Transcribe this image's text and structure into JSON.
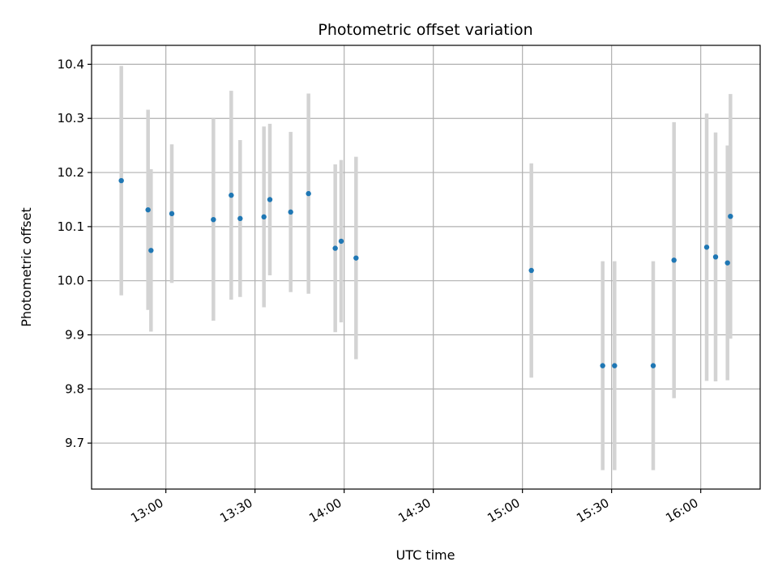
{
  "chart_data": {
    "type": "scatter",
    "title": "Photometric offset variation",
    "xlabel": "UTC time",
    "ylabel": "Photometric offset",
    "xlim": [
      "12:35",
      "16:20"
    ],
    "ylim": [
      9.615,
      10.435
    ],
    "x_ticks": [
      "13:00",
      "13:30",
      "14:00",
      "14:30",
      "15:00",
      "15:30",
      "16:00"
    ],
    "y_ticks": [
      9.7,
      9.8,
      9.9,
      10.0,
      10.1,
      10.2,
      10.3,
      10.4
    ],
    "grid": true,
    "point_color": "#1f77b4",
    "errorbar_color": "#d3d3d3",
    "points": [
      {
        "x": "12:45",
        "y": 10.185,
        "err": 0.212
      },
      {
        "x": "12:54",
        "y": 10.131,
        "err": 0.185
      },
      {
        "x": "12:55",
        "y": 10.056,
        "err": 0.15
      },
      {
        "x": "13:02",
        "y": 10.124,
        "err": 0.128
      },
      {
        "x": "13:16",
        "y": 10.113,
        "err": 0.187
      },
      {
        "x": "13:22",
        "y": 10.158,
        "err": 0.193
      },
      {
        "x": "13:25",
        "y": 10.115,
        "err": 0.145
      },
      {
        "x": "13:33",
        "y": 10.118,
        "err": 0.167
      },
      {
        "x": "13:35",
        "y": 10.15,
        "err": 0.14
      },
      {
        "x": "13:42",
        "y": 10.127,
        "err": 0.148
      },
      {
        "x": "13:48",
        "y": 10.161,
        "err": 0.185
      },
      {
        "x": "13:57",
        "y": 10.06,
        "err": 0.155
      },
      {
        "x": "13:59",
        "y": 10.073,
        "err": 0.15
      },
      {
        "x": "14:04",
        "y": 10.042,
        "err": 0.187
      },
      {
        "x": "15:03",
        "y": 10.019,
        "err": 0.198
      },
      {
        "x": "15:27",
        "y": 9.843,
        "err": 0.193
      },
      {
        "x": "15:31",
        "y": 9.843,
        "err": 0.193
      },
      {
        "x": "15:44",
        "y": 9.843,
        "err": 0.193
      },
      {
        "x": "15:51",
        "y": 10.038,
        "err": 0.255
      },
      {
        "x": "16:02",
        "y": 10.062,
        "err": 0.247
      },
      {
        "x": "16:05",
        "y": 10.044,
        "err": 0.23
      },
      {
        "x": "16:09",
        "y": 10.033,
        "err": 0.217
      },
      {
        "x": "16:10",
        "y": 10.119,
        "err": 0.226
      }
    ]
  }
}
